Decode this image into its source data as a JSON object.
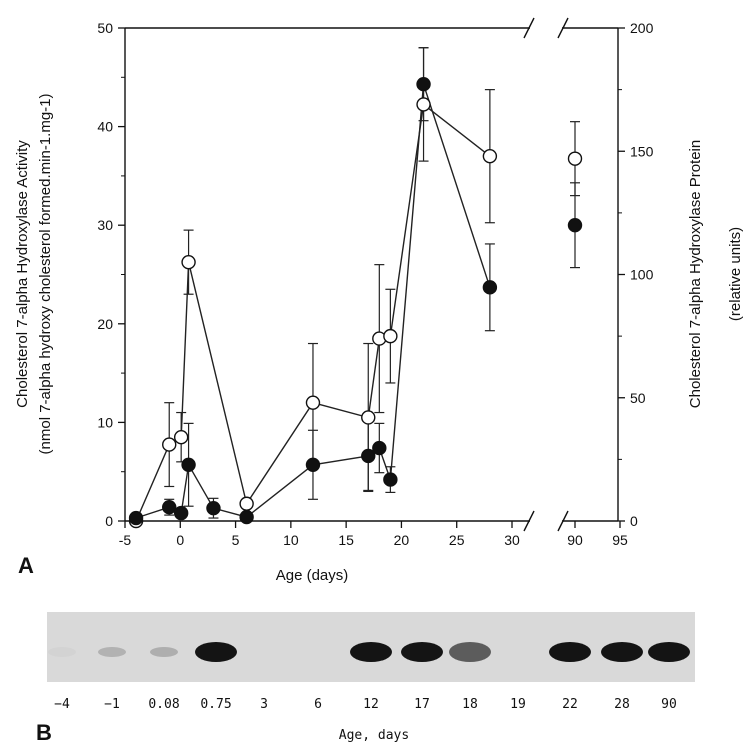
{
  "chart_data": [
    {
      "panel": "A",
      "type": "line",
      "xlabel": "Age (days)",
      "ylabel_left_line1": "Cholesterol 7-alpha Hydroxylase Activity",
      "ylabel_left_line2": "(nmol 7-alpha hydroxy cholesterol formed.min-1.mg-1)",
      "ylabel_right_line1": "Cholesterol 7-alpha Hydroxylase Protein",
      "ylabel_right_line2": "(relative units)",
      "x_ticks": [
        "-5",
        "0",
        "5",
        "10",
        "15",
        "20",
        "25",
        "30",
        "90",
        "95"
      ],
      "y_ticks_left": [
        "0",
        "10",
        "20",
        "30",
        "40",
        "50"
      ],
      "y_ticks_right": [
        "0",
        "50",
        "100",
        "150",
        "200"
      ],
      "ylim_left": [
        0,
        50
      ],
      "ylim_right": [
        0,
        200
      ],
      "x_break": [
        33,
        88
      ],
      "series": [
        {
          "marker": "open",
          "axis": "right",
          "points": [
            {
              "x": -4,
              "y": 0,
              "err": 0
            },
            {
              "x": -1,
              "y": 31,
              "err": 17
            },
            {
              "x": 0.08,
              "y": 34,
              "err": 10
            },
            {
              "x": 0.75,
              "y": 105,
              "err": 13
            },
            {
              "x": 6,
              "y": 7,
              "err": 0
            },
            {
              "x": 12,
              "y": 48,
              "err": 24
            },
            {
              "x": 17,
              "y": 42,
              "err": 30
            },
            {
              "x": 18,
              "y": 74,
              "err": 30
            },
            {
              "x": 19,
              "y": 75,
              "err": 19
            },
            {
              "x": 22,
              "y": 169,
              "err": 23
            },
            {
              "x": 28,
              "y": 148,
              "err": 27
            },
            {
              "x": 90,
              "y": 147,
              "err": 15
            }
          ]
        },
        {
          "marker": "filled",
          "axis": "left",
          "points": [
            {
              "x": -4,
              "y": 0.3,
              "err": 0.4
            },
            {
              "x": -1,
              "y": 1.4,
              "err": 0.8
            },
            {
              "x": 0.08,
              "y": 0.8,
              "err": 0.4
            },
            {
              "x": 0.75,
              "y": 5.7,
              "err": 4.2
            },
            {
              "x": 3,
              "y": 1.3,
              "err": 1.0
            },
            {
              "x": 6,
              "y": 0.4,
              "err": 0
            },
            {
              "x": 12,
              "y": 5.7,
              "err": 3.5
            },
            {
              "x": 17,
              "y": 6.6,
              "err": 3.5
            },
            {
              "x": 18,
              "y": 7.4,
              "err": 2.5
            },
            {
              "x": 19,
              "y": 4.2,
              "err": 1.3
            },
            {
              "x": 22,
              "y": 44.3,
              "err": 3.7
            },
            {
              "x": 28,
              "y": 23.7,
              "err": 4.4
            },
            {
              "x": 90,
              "y": 30.0,
              "err": 4.3
            }
          ]
        }
      ]
    },
    {
      "panel": "B",
      "type": "table",
      "xlabel": "Age, days",
      "lanes": [
        "−4",
        "−1",
        "0.08",
        "0.75",
        "3",
        "6",
        "12",
        "17",
        "18",
        "19",
        "22",
        "28",
        "90"
      ],
      "band_intensity": [
        0.02,
        0.18,
        0.2,
        0.95,
        0.0,
        0.0,
        0.95,
        0.95,
        0.6,
        0.0,
        0.95,
        0.95,
        0.95
      ]
    }
  ]
}
